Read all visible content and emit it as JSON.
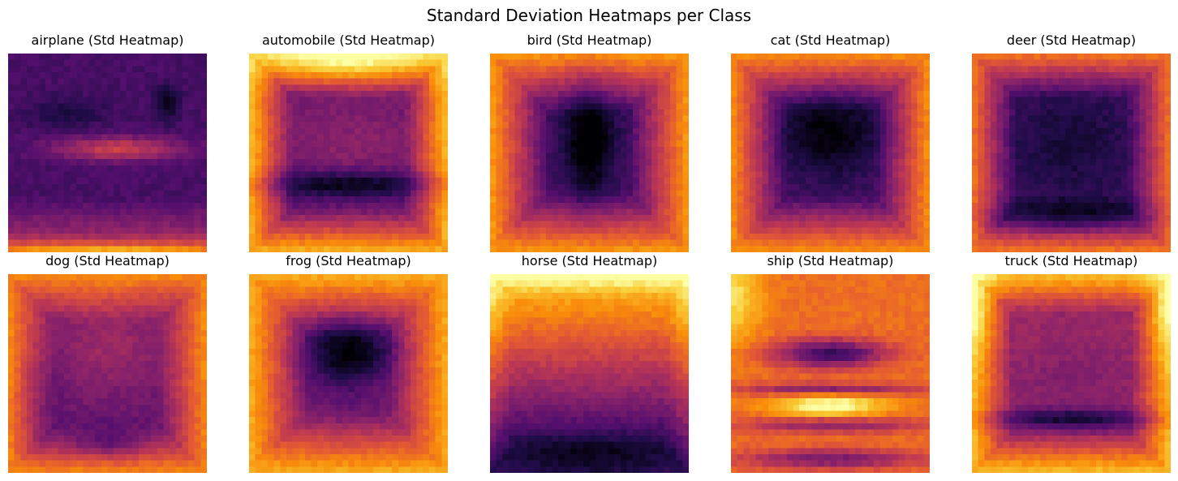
{
  "figure": {
    "title": "Standard Deviation Heatmaps per Class"
  },
  "chart_data": [
    {
      "type": "heatmap",
      "title": "airplane (Std Heatmap)",
      "class": "airplane",
      "colormap": "inferno",
      "grid": false,
      "pattern": "airplane"
    },
    {
      "type": "heatmap",
      "title": "automobile (Std Heatmap)",
      "class": "automobile",
      "colormap": "inferno",
      "grid": false,
      "pattern": "automobile"
    },
    {
      "type": "heatmap",
      "title": "bird (Std Heatmap)",
      "class": "bird",
      "colormap": "inferno",
      "grid": false,
      "pattern": "bird"
    },
    {
      "type": "heatmap",
      "title": "cat (Std Heatmap)",
      "class": "cat",
      "colormap": "inferno",
      "grid": false,
      "pattern": "cat"
    },
    {
      "type": "heatmap",
      "title": "deer (Std Heatmap)",
      "class": "deer",
      "colormap": "inferno",
      "grid": false,
      "pattern": "deer"
    },
    {
      "type": "heatmap",
      "title": "dog (Std Heatmap)",
      "class": "dog",
      "colormap": "inferno",
      "grid": false,
      "pattern": "dog"
    },
    {
      "type": "heatmap",
      "title": "frog (Std Heatmap)",
      "class": "frog",
      "colormap": "inferno",
      "grid": false,
      "pattern": "frog"
    },
    {
      "type": "heatmap",
      "title": "horse (Std Heatmap)",
      "class": "horse",
      "colormap": "inferno",
      "grid": false,
      "pattern": "horse"
    },
    {
      "type": "heatmap",
      "title": "ship (Std Heatmap)",
      "class": "ship",
      "colormap": "inferno",
      "grid": false,
      "pattern": "ship"
    },
    {
      "type": "heatmap",
      "title": "truck (Std Heatmap)",
      "class": "truck",
      "colormap": "inferno",
      "grid": false,
      "pattern": "truck"
    }
  ]
}
